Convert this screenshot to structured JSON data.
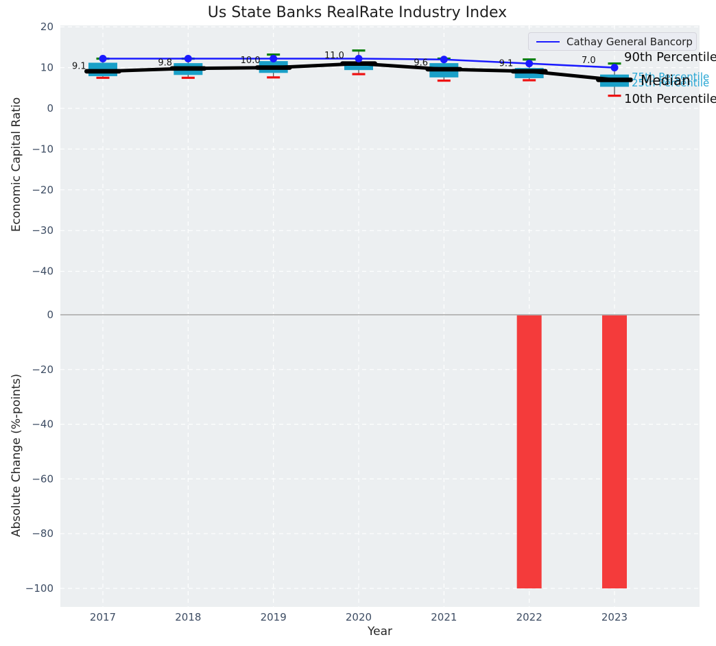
{
  "figure_title": "Us State Banks RealRate Industry Index",
  "legend": {
    "entry": "Cathay General Bancorp"
  },
  "chart_data": [
    {
      "type": "boxplot",
      "title": "Us State Banks RealRate Industry Index",
      "ylabel": "Economic Capital Ratio",
      "series_name": "Cathay General Bancorp",
      "categories": [
        "2017",
        "2018",
        "2019",
        "2020",
        "2021",
        "2022",
        "2023"
      ],
      "cathay_line": [
        12.2,
        12.2,
        12.2,
        12.2,
        12.0,
        11.0,
        10.0
      ],
      "median": [
        9.1,
        9.8,
        10.0,
        11.0,
        9.6,
        9.1,
        7.0
      ],
      "median_labels": [
        "9.1",
        "9.8",
        "10.0",
        "11.0",
        "9.6",
        "9.1",
        "7.0"
      ],
      "p90": [
        12.2,
        12.2,
        13.2,
        14.2,
        12.2,
        12.0,
        11.0
      ],
      "p75": [
        11.2,
        11.1,
        11.6,
        11.5,
        11.1,
        9.9,
        8.3
      ],
      "p25": [
        7.9,
        8.2,
        8.7,
        9.4,
        7.6,
        7.4,
        5.3
      ],
      "p10": [
        7.5,
        7.5,
        7.6,
        8.4,
        6.8,
        6.9,
        3.1
      ],
      "yticks": [
        "20",
        "10",
        "0",
        "−10",
        "−20",
        "−30",
        "−40"
      ],
      "ytick_values": [
        20,
        10,
        0,
        -10,
        -20,
        -30,
        -40
      ],
      "ylim": [
        20.4,
        -48
      ],
      "grid": true,
      "legend_position": "upper right",
      "percentile_labels": {
        "p90": "90th Percentile",
        "p75": "75th Percentile",
        "median": "Median",
        "p25": "25th Percentile",
        "p10": "10th Percentile"
      },
      "colors": {
        "box": "#1aa0c8",
        "cap_top": "#088008",
        "cap_bottom": "#ee1111",
        "median_line": "#000000",
        "cathay_line": "#1a1aff",
        "percentile_text_cyan": "#29a7d4"
      },
      "label_dx": [
        -45,
        -44,
        -48,
        -50,
        -44,
        -44,
        -48
      ],
      "label_dy": [
        -8,
        -9,
        -11,
        -12,
        -10,
        -12,
        -29
      ]
    },
    {
      "type": "bar",
      "ylabel": "Absolute Change (%-points)",
      "xlabel": "Year",
      "categories": [
        "2017",
        "2018",
        "2019",
        "2020",
        "2021",
        "2022",
        "2023"
      ],
      "values": [
        0,
        0,
        0,
        0,
        0,
        -100,
        -100
      ],
      "yticks": [
        "0",
        "−20",
        "−40",
        "−60",
        "−80",
        "−100"
      ],
      "ytick_values": [
        0,
        -20,
        -40,
        -60,
        -80,
        -100
      ],
      "ylim": [
        4,
        -107
      ],
      "grid": true,
      "bar_color": "#f43b3b",
      "zero_line_color": "#b0b0b0"
    }
  ],
  "style": {
    "plot_bg": "#eceff1",
    "gridline_color": "#ffffff",
    "tick_label_color": "#3d4c63"
  }
}
